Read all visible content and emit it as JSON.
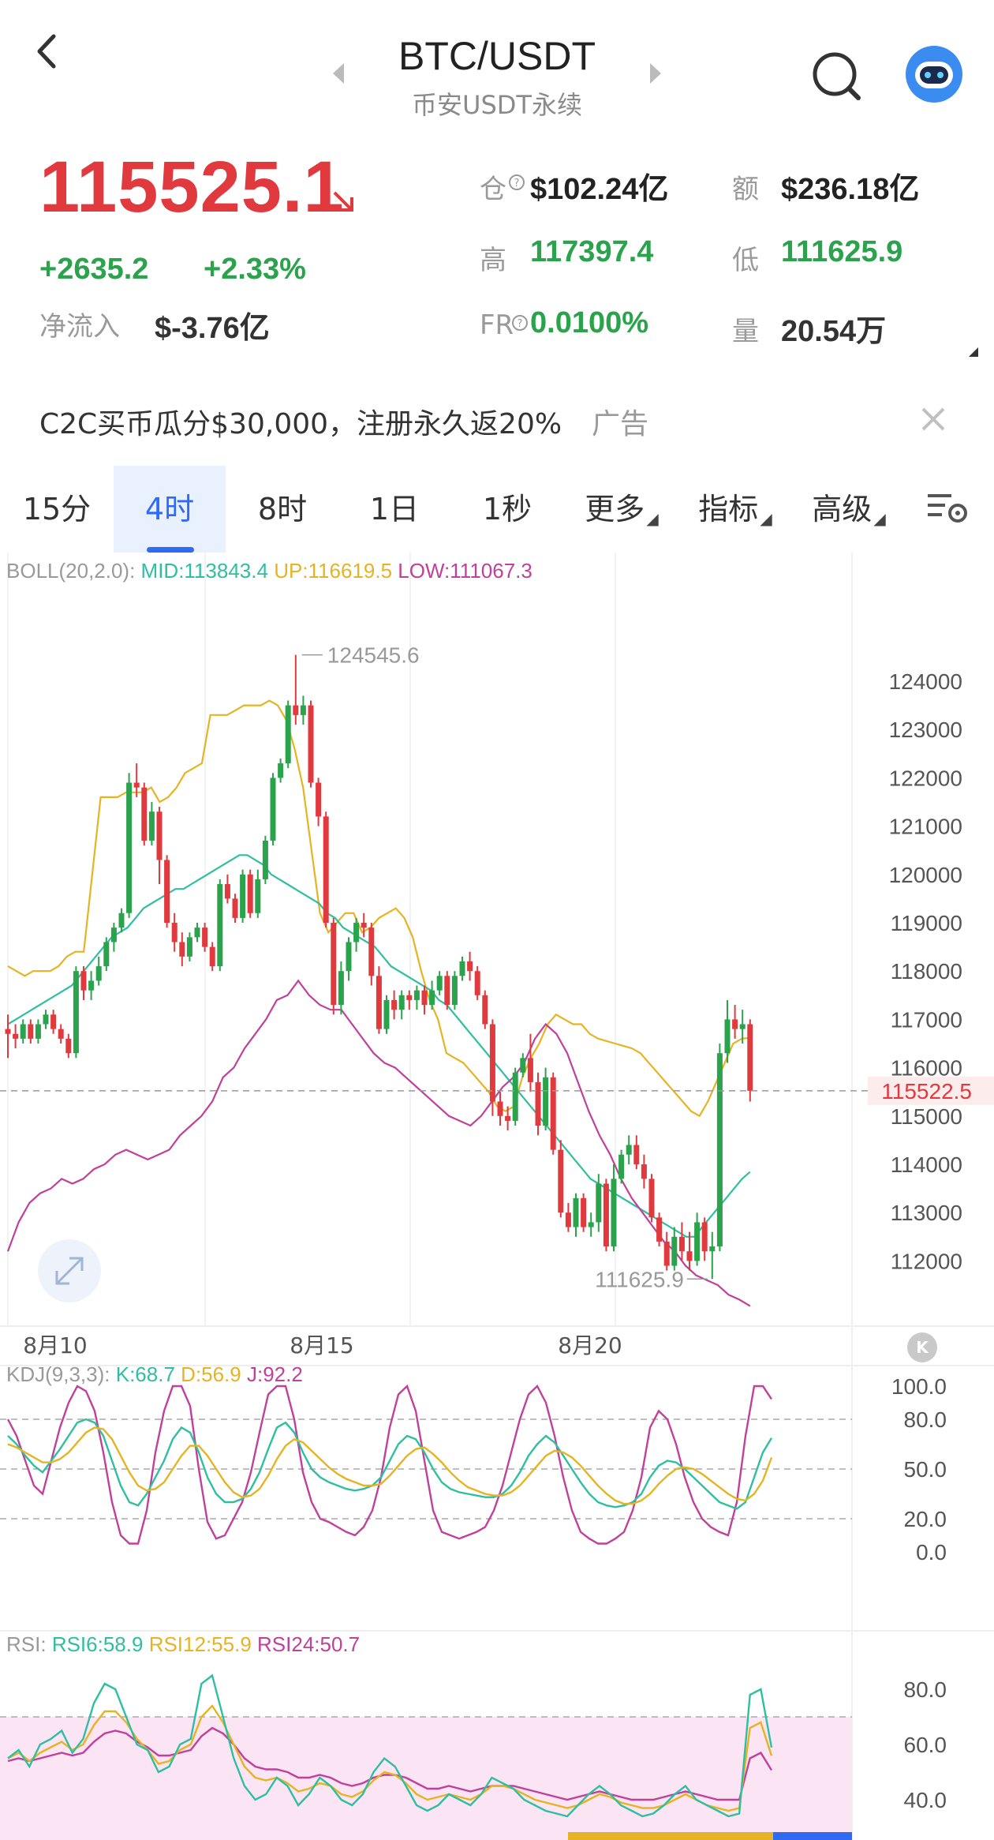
{
  "header": {
    "pair": "BTC/USDT",
    "subtitle": "币安USDT永续"
  },
  "price": {
    "last": "115525.1",
    "change": "+2635.2",
    "change_pct": "+2.33%",
    "netflow_label": "净流入",
    "netflow_value": "$-3.76亿"
  },
  "stats": {
    "oi_label": "仓",
    "oi_value": "$102.24亿",
    "turnover_label": "额",
    "turnover_value": "$236.18亿",
    "high_label": "高",
    "high_value": "117397.4",
    "low_label": "低",
    "low_value": "111625.9",
    "fr_label": "FR",
    "fr_value": "0.0100%",
    "vol_label": "量",
    "vol_value": "20.54万"
  },
  "ad": {
    "text": "C2C买币瓜分$30,000，注册永久返20%",
    "tag": "广告"
  },
  "tabs": [
    "15分",
    "4时",
    "8时",
    "1日",
    "1秒",
    "更多",
    "指标",
    "高级"
  ],
  "active_tab": "4时",
  "colors": {
    "up": "#2ba24c",
    "down": "#e0393e",
    "mid": "#2fbfa0",
    "upper": "#e6b422",
    "lower": "#c0409a",
    "accent": "#2f6bf2"
  },
  "boll": {
    "name": "BOLL(20,2.0):",
    "mid": "MID:113843.4",
    "up": "UP:116619.5",
    "low": "LOW:111067.3"
  },
  "kdj": {
    "name": "KDJ(9,3,3):",
    "k": "K:68.7",
    "d": "D:56.9",
    "j": "J:92.2"
  },
  "rsi": {
    "name": "RSI:",
    "r6": "RSI6:58.9",
    "r12": "RSI12:55.9",
    "r24": "RSI24:50.7"
  },
  "chart_data": {
    "type": "line",
    "price_axis": [
      "124000",
      "123000",
      "122000",
      "121000",
      "120000",
      "119000",
      "118000",
      "117000",
      "116000",
      "115000",
      "114000",
      "113000",
      "112000"
    ],
    "current_price_tag": "115522.5",
    "max_marker": "124545.6",
    "min_marker": "111625.9",
    "x_labels": [
      "8月10",
      "8月15",
      "8月20"
    ],
    "kdj_axis": [
      "100.0",
      "80.0",
      "50.0",
      "20.0",
      "0.0"
    ],
    "rsi_axis": [
      "80.0",
      "60.0",
      "40.0"
    ],
    "candles": [
      [
        116800,
        116700,
        116200,
        117100
      ],
      [
        116700,
        116600,
        116400,
        116900
      ],
      [
        116600,
        116900,
        116500,
        117000
      ],
      [
        116900,
        116600,
        116500,
        117000
      ],
      [
        116600,
        116900,
        116500,
        117000
      ],
      [
        116900,
        117100,
        116800,
        117200
      ],
      [
        117100,
        116800,
        116700,
        117200
      ],
      [
        116800,
        116600,
        116500,
        116900
      ],
      [
        116600,
        116300,
        116200,
        116700
      ],
      [
        116300,
        118000,
        116200,
        118100
      ],
      [
        118000,
        117600,
        117400,
        118100
      ],
      [
        117600,
        117800,
        117400,
        118000
      ],
      [
        117800,
        118100,
        117700,
        118300
      ],
      [
        118100,
        118600,
        118000,
        118700
      ],
      [
        118600,
        118900,
        118400,
        119000
      ],
      [
        118900,
        119200,
        118800,
        119300
      ],
      [
        119200,
        121900,
        119100,
        122100
      ],
      [
        121900,
        121800,
        121600,
        122300
      ],
      [
        121800,
        120700,
        120600,
        121900
      ],
      [
        120700,
        121300,
        120600,
        121500
      ],
      [
        121300,
        120300,
        119800,
        121400
      ],
      [
        120300,
        119000,
        118900,
        120400
      ],
      [
        119000,
        118600,
        118400,
        119200
      ],
      [
        118600,
        118300,
        118100,
        118800
      ],
      [
        118300,
        118700,
        118200,
        118800
      ],
      [
        118700,
        118900,
        118600,
        119000
      ],
      [
        118900,
        118500,
        118400,
        119000
      ],
      [
        118500,
        118100,
        118000,
        118600
      ],
      [
        118100,
        119800,
        118000,
        119900
      ],
      [
        119800,
        119500,
        119400,
        120000
      ],
      [
        119500,
        119100,
        119000,
        119600
      ],
      [
        119100,
        120000,
        119000,
        120100
      ],
      [
        120000,
        119200,
        119100,
        120100
      ],
      [
        119200,
        119900,
        119100,
        120100
      ],
      [
        119900,
        120700,
        119800,
        120800
      ],
      [
        120700,
        122000,
        120600,
        122100
      ],
      [
        122000,
        122300,
        121900,
        122400
      ],
      [
        122300,
        123500,
        122200,
        123600
      ],
      [
        123500,
        123300,
        123100,
        124545
      ],
      [
        123300,
        123500,
        123100,
        123700
      ],
      [
        123500,
        121900,
        121800,
        123600
      ],
      [
        121900,
        121200,
        121000,
        122000
      ],
      [
        121200,
        119000,
        118900,
        121300
      ],
      [
        119000,
        117300,
        117100,
        119100
      ],
      [
        117300,
        118000,
        117100,
        118200
      ],
      [
        118000,
        118600,
        117800,
        118700
      ],
      [
        118600,
        119000,
        118400,
        119100
      ],
      [
        119000,
        118900,
        118700,
        119200
      ],
      [
        118900,
        117900,
        117700,
        119000
      ],
      [
        117900,
        116800,
        116700,
        118100
      ],
      [
        116800,
        117400,
        116700,
        117500
      ],
      [
        117400,
        117200,
        117000,
        117600
      ],
      [
        117200,
        117500,
        117000,
        117600
      ],
      [
        117500,
        117400,
        117200,
        117600
      ],
      [
        117400,
        117600,
        117200,
        117700
      ],
      [
        117600,
        117300,
        117100,
        117700
      ],
      [
        117300,
        117600,
        117200,
        117800
      ],
      [
        117600,
        117900,
        117500,
        118000
      ],
      [
        117900,
        117300,
        117200,
        118000
      ],
      [
        117300,
        117900,
        117200,
        118000
      ],
      [
        117900,
        118200,
        117800,
        118300
      ],
      [
        118200,
        118000,
        117800,
        118400
      ],
      [
        118000,
        117500,
        117400,
        118100
      ],
      [
        117500,
        116900,
        116800,
        117600
      ],
      [
        116900,
        115300,
        115000,
        117000
      ],
      [
        115300,
        115000,
        114800,
        115500
      ],
      [
        115000,
        114900,
        114700,
        115200
      ],
      [
        114900,
        115900,
        114800,
        116000
      ],
      [
        115900,
        116200,
        115800,
        116300
      ],
      [
        116200,
        115700,
        115500,
        116700
      ],
      [
        115700,
        114800,
        114600,
        115900
      ],
      [
        114800,
        115800,
        114700,
        116000
      ],
      [
        115800,
        114300,
        114200,
        115900
      ],
      [
        114300,
        113000,
        112900,
        114500
      ],
      [
        113000,
        112700,
        112600,
        113200
      ],
      [
        112700,
        113300,
        112500,
        113400
      ],
      [
        113300,
        112700,
        112600,
        113400
      ],
      [
        112700,
        112800,
        112500,
        113000
      ],
      [
        112800,
        113600,
        112600,
        113800
      ],
      [
        113600,
        112300,
        112200,
        113700
      ],
      [
        112300,
        113700,
        112200,
        114000
      ],
      [
        113700,
        114200,
        113600,
        114300
      ],
      [
        114200,
        114400,
        114000,
        114600
      ],
      [
        114400,
        114000,
        113900,
        114600
      ],
      [
        114000,
        113700,
        113500,
        114200
      ],
      [
        113700,
        112900,
        112800,
        113800
      ],
      [
        112900,
        112400,
        112300,
        113000
      ],
      [
        112400,
        111900,
        111800,
        112600
      ],
      [
        111900,
        112500,
        111800,
        112700
      ],
      [
        112500,
        112200,
        112000,
        112800
      ],
      [
        112200,
        112000,
        111800,
        112600
      ],
      [
        112000,
        112800,
        111900,
        113000
      ],
      [
        112800,
        112200,
        112000,
        112900
      ],
      [
        112200,
        112300,
        111626,
        112600
      ],
      [
        112300,
        116300,
        112200,
        116500
      ],
      [
        116300,
        117000,
        116100,
        117397
      ],
      [
        117000,
        116800,
        116600,
        117300
      ],
      [
        116800,
        116900,
        116500,
        117200
      ],
      [
        116900,
        115522,
        115300,
        117000
      ]
    ],
    "boll_mid": [
      116900,
      117000,
      117100,
      117200,
      117300,
      117400,
      117500,
      117600,
      117700,
      117900,
      118100,
      118300,
      118500,
      118700,
      118800,
      118900,
      119100,
      119300,
      119400,
      119500,
      119600,
      119700,
      119700,
      119800,
      119900,
      120000,
      120100,
      120200,
      120300,
      120400,
      120400,
      120300,
      120200,
      120000,
      119900,
      119800,
      119700,
      119600,
      119500,
      119400,
      119200,
      119100,
      118900,
      118800,
      118700,
      118600,
      118500,
      118300,
      118100,
      118000,
      117900,
      117800,
      117700,
      117600,
      117400,
      117300,
      117100,
      116900,
      116700,
      116500,
      116300,
      116100,
      115900,
      115700,
      115500,
      115300,
      115100,
      114900,
      114700,
      114500,
      114300,
      114100,
      113900,
      113700,
      113600,
      113500,
      113400,
      113300,
      113200,
      113100,
      113000,
      112900,
      112800,
      112700,
      112600,
      112500,
      112500,
      112700,
      112900,
      113100,
      113300,
      113500,
      113700,
      113843
    ],
    "boll_up": [
      118100,
      118000,
      117900,
      118000,
      118000,
      118000,
      118100,
      118300,
      118400,
      118400,
      120000,
      121600,
      121600,
      121600,
      121700,
      121700,
      121700,
      121800,
      121500,
      121600,
      121800,
      122100,
      122200,
      122300,
      123300,
      123300,
      123300,
      123400,
      123500,
      123500,
      123500,
      123600,
      123500,
      123200,
      122600,
      121800,
      120500,
      119200,
      118800,
      119000,
      119200,
      119200,
      118800,
      118900,
      119100,
      119200,
      119300,
      119100,
      118700,
      118000,
      117400,
      117000,
      116300,
      116200,
      116100,
      115900,
      115700,
      115500,
      115200,
      115100,
      115200,
      115800,
      116200,
      116500,
      116900,
      117100,
      117000,
      116900,
      116900,
      116700,
      116600,
      116550,
      116500,
      116450,
      116400,
      116300,
      116100,
      115900,
      115700,
      115500,
      115300,
      115100,
      115000,
      115300,
      115700,
      116100,
      116500,
      116600,
      116619
    ],
    "boll_low": [
      112200,
      112800,
      113200,
      113400,
      113500,
      113700,
      113600,
      113700,
      113900,
      114000,
      114200,
      114300,
      114200,
      114100,
      114200,
      114300,
      114600,
      114800,
      115000,
      115300,
      115800,
      116000,
      116400,
      116700,
      117000,
      117400,
      117500,
      117800,
      117500,
      117300,
      117200,
      117200,
      116900,
      116600,
      116300,
      116100,
      116000,
      115800,
      115600,
      115400,
      115200,
      115000,
      114900,
      114800,
      115000,
      115300,
      115600,
      115800,
      116100,
      116600,
      116900,
      116700,
      116300,
      115700,
      115100,
      114600,
      114200,
      113700,
      113300,
      113000,
      112700,
      112400,
      112200,
      111900,
      111700,
      111600,
      111500,
      111300,
      111200,
      111067
    ],
    "kdj_k": [
      70,
      65,
      58,
      52,
      48,
      55,
      62,
      70,
      78,
      80,
      78,
      70,
      55,
      40,
      30,
      28,
      35,
      45,
      55,
      68,
      75,
      72,
      60,
      45,
      35,
      30,
      30,
      32,
      38,
      48,
      62,
      75,
      78,
      72,
      60,
      50,
      45,
      42,
      40,
      38,
      37,
      38,
      40,
      45,
      55,
      65,
      70,
      68,
      60,
      50,
      42,
      38,
      36,
      35,
      34,
      33,
      33,
      35,
      40,
      48,
      58,
      65,
      70,
      66,
      58,
      50,
      42,
      35,
      30,
      28,
      27,
      28,
      30,
      35,
      45,
      52,
      55,
      54,
      50,
      45,
      40,
      35,
      30,
      28,
      26,
      30,
      45,
      60,
      68.7
    ],
    "kdj_d": [
      65,
      63,
      60,
      57,
      54,
      54,
      56,
      60,
      66,
      72,
      75,
      74,
      68,
      58,
      48,
      40,
      37,
      38,
      42,
      50,
      58,
      64,
      64,
      58,
      50,
      42,
      36,
      33,
      34,
      38,
      46,
      56,
      64,
      68,
      66,
      61,
      56,
      51,
      47,
      44,
      42,
      40,
      40,
      41,
      46,
      52,
      58,
      62,
      63,
      59,
      54,
      48,
      43,
      39,
      37,
      35,
      34,
      34,
      36,
      40,
      46,
      52,
      58,
      61,
      60,
      57,
      52,
      46,
      40,
      35,
      31,
      29,
      29,
      31,
      35,
      41,
      46,
      50,
      51,
      50,
      47,
      43,
      39,
      35,
      32,
      31,
      35,
      43,
      56.9
    ],
    "kdj_j": [
      80,
      70,
      55,
      40,
      35,
      55,
      75,
      90,
      100,
      97,
      85,
      60,
      30,
      10,
      5,
      5,
      25,
      60,
      85,
      100,
      100,
      88,
      50,
      18,
      8,
      10,
      20,
      30,
      48,
      72,
      95,
      100,
      100,
      80,
      48,
      30,
      20,
      18,
      15,
      12,
      10,
      15,
      25,
      45,
      75,
      95,
      100,
      85,
      55,
      25,
      12,
      10,
      8,
      10,
      12,
      15,
      25,
      40,
      60,
      80,
      95,
      100,
      90,
      70,
      45,
      25,
      12,
      8,
      5,
      5,
      8,
      12,
      25,
      45,
      75,
      85,
      80,
      65,
      45,
      30,
      20,
      15,
      12,
      10,
      30,
      70,
      100,
      100,
      92.2
    ],
    "rsi6": [
      55,
      58,
      52,
      60,
      62,
      65,
      57,
      62,
      75,
      82,
      80,
      70,
      60,
      58,
      50,
      52,
      60,
      62,
      82,
      85,
      70,
      55,
      45,
      40,
      42,
      48,
      45,
      38,
      42,
      48,
      45,
      40,
      38,
      42,
      50,
      55,
      52,
      45,
      38,
      36,
      38,
      42,
      40,
      38,
      42,
      48,
      46,
      44,
      40,
      38,
      36,
      35,
      34,
      38,
      42,
      45,
      42,
      38,
      36,
      34,
      35,
      38,
      42,
      45,
      40,
      38,
      36,
      34,
      35,
      78,
      80,
      58.9
    ],
    "rsi12": [
      55,
      57,
      54,
      57,
      59,
      61,
      58,
      60,
      67,
      72,
      72,
      68,
      62,
      58,
      53,
      54,
      58,
      60,
      70,
      74,
      68,
      60,
      52,
      48,
      47,
      48,
      46,
      43,
      44,
      46,
      45,
      42,
      41,
      43,
      47,
      50,
      49,
      46,
      42,
      40,
      41,
      42,
      41,
      40,
      42,
      45,
      45,
      44,
      42,
      40,
      39,
      38,
      37,
      38,
      40,
      42,
      41,
      39,
      38,
      37,
      37,
      38,
      40,
      42,
      40,
      38,
      37,
      36,
      37,
      66,
      68,
      55.9
    ],
    "rsi24": [
      54,
      55,
      54,
      55,
      56,
      57,
      56,
      57,
      61,
      64,
      65,
      64,
      61,
      59,
      56,
      56,
      57,
      58,
      63,
      66,
      64,
      60,
      55,
      52,
      51,
      51,
      50,
      48,
      48,
      49,
      48,
      46,
      45,
      46,
      48,
      49,
      49,
      48,
      46,
      44,
      44,
      45,
      44,
      43,
      44,
      45,
      45,
      45,
      44,
      43,
      42,
      41,
      40,
      41,
      42,
      43,
      42,
      41,
      40,
      40,
      40,
      41,
      42,
      43,
      42,
      41,
      40,
      40,
      40,
      55,
      57,
      50.7
    ]
  }
}
